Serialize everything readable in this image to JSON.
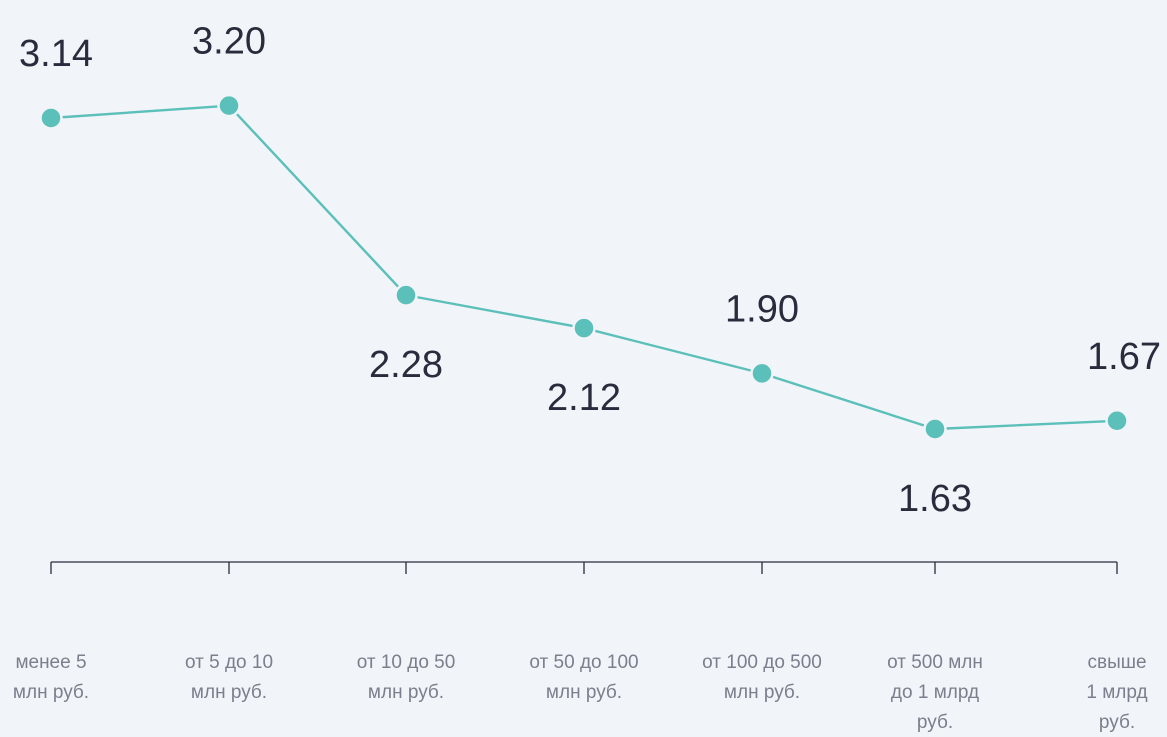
{
  "chart_data": {
    "type": "line",
    "categories": [
      "менее 5 млн руб.",
      "от 5 до 10 млн руб.",
      "от 10 до 50 млн руб.",
      "от 50 до 100 млн руб.",
      "от 100 до 500 млн руб.",
      "от 500 млн до 1 млрд руб.",
      "свыше 1 млрд руб."
    ],
    "category_lines": [
      [
        "менее 5",
        "млн руб."
      ],
      [
        "от 5 до 10",
        "млн руб."
      ],
      [
        "от 10 до 50",
        "млн руб."
      ],
      [
        "от 50 до 100",
        "млн руб."
      ],
      [
        "от 100 до 500",
        "млн руб."
      ],
      [
        "от 500 млн",
        "до 1 млрд",
        "руб."
      ],
      [
        "свыше",
        "1 млрд",
        "руб."
      ]
    ],
    "values": [
      3.14,
      3.2,
      2.28,
      2.12,
      1.9,
      1.63,
      1.67
    ],
    "value_labels": [
      "3.14",
      "3.20",
      "2.28",
      "2.12",
      "1.90",
      "1.63",
      "1.67"
    ],
    "label_positions": [
      "above",
      "above",
      "below",
      "below",
      "above",
      "below",
      "above"
    ],
    "title": "",
    "xlabel": "",
    "ylabel": "",
    "grid": false,
    "legend": "none",
    "colors": {
      "line": "#5bbfba",
      "axis": "#2a2b3d",
      "value_text": "#2a2b3d",
      "tick_text": "#7b7e8c",
      "background": "#f1f4f8"
    }
  }
}
